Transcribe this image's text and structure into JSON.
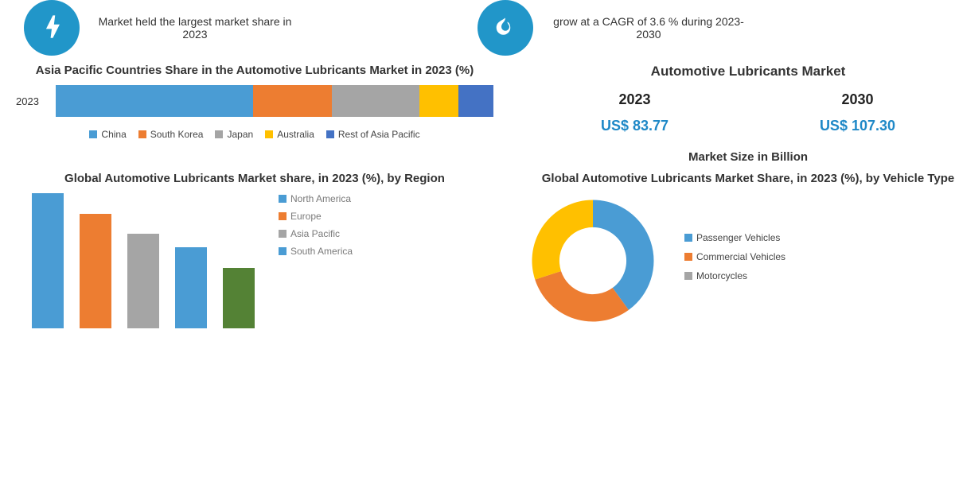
{
  "top": {
    "left": {
      "icon_bg": "#2196c9",
      "text": "Market held the largest market share in 2023"
    },
    "right": {
      "icon_bg": "#2196c9",
      "text": "grow at a CAGR of 3.6 % during 2023-2030"
    }
  },
  "apac_chart": {
    "title": "Asia Pacific Countries Share in the Automotive Lubricants Market in 2023 (%)",
    "year_label": "2023",
    "segments": [
      {
        "label": "China",
        "value": 45,
        "color": "#4a9cd4"
      },
      {
        "label": "South Korea",
        "value": 18,
        "color": "#ed7d31"
      },
      {
        "label": "Japan",
        "value": 20,
        "color": "#a5a5a5"
      },
      {
        "label": "Australia",
        "value": 9,
        "color": "#ffc000"
      },
      {
        "label": "Rest of Asia Pacific",
        "value": 8,
        "color": "#4472c4"
      }
    ]
  },
  "market_size": {
    "title": "Automotive Lubricants Market",
    "year1": "2023",
    "val1": "US$ 83.77",
    "year2": "2030",
    "val2": "US$ 107.30",
    "subtitle": "Market Size in Billion"
  },
  "region_chart": {
    "title": "Global Automotive Lubricants Market share, in 2023 (%), by Region",
    "bars": [
      {
        "label": "North America",
        "value": 100,
        "color": "#4a9cd4"
      },
      {
        "label": "Europe",
        "value": 85,
        "color": "#ed7d31"
      },
      {
        "label": "Asia Pacific",
        "value": 70,
        "color": "#a5a5a5"
      },
      {
        "label": "South America",
        "value": 60,
        "color": "#4a9cd4"
      },
      {
        "label": "",
        "value": 45,
        "color": "#548235"
      }
    ],
    "legend": [
      {
        "label": "North America",
        "color": "#4a9cd4"
      },
      {
        "label": "Europe",
        "color": "#ed7d31"
      },
      {
        "label": "Asia Pacific",
        "color": "#a5a5a5"
      },
      {
        "label": "South America",
        "color": "#4a9cd4"
      }
    ]
  },
  "vehicle_chart": {
    "title": "Global Automotive Lubricants Market Share, in 2023 (%), by Vehicle Type",
    "slices": [
      {
        "label": "Passenger Vehicles",
        "value": 40,
        "color": "#4a9cd4"
      },
      {
        "label": "Commercial Vehicles",
        "value": 30,
        "color": "#ed7d31"
      },
      {
        "label": "Motorcycles",
        "value": 30,
        "color": "#ffc000"
      }
    ],
    "donut_inner": 0.55,
    "legend": [
      {
        "label": "Passenger Vehicles",
        "color": "#4a9cd4"
      },
      {
        "label": "Commercial Vehicles",
        "color": "#ed7d31"
      },
      {
        "label": "Motorcycles",
        "color": "#a5a5a5"
      }
    ]
  }
}
